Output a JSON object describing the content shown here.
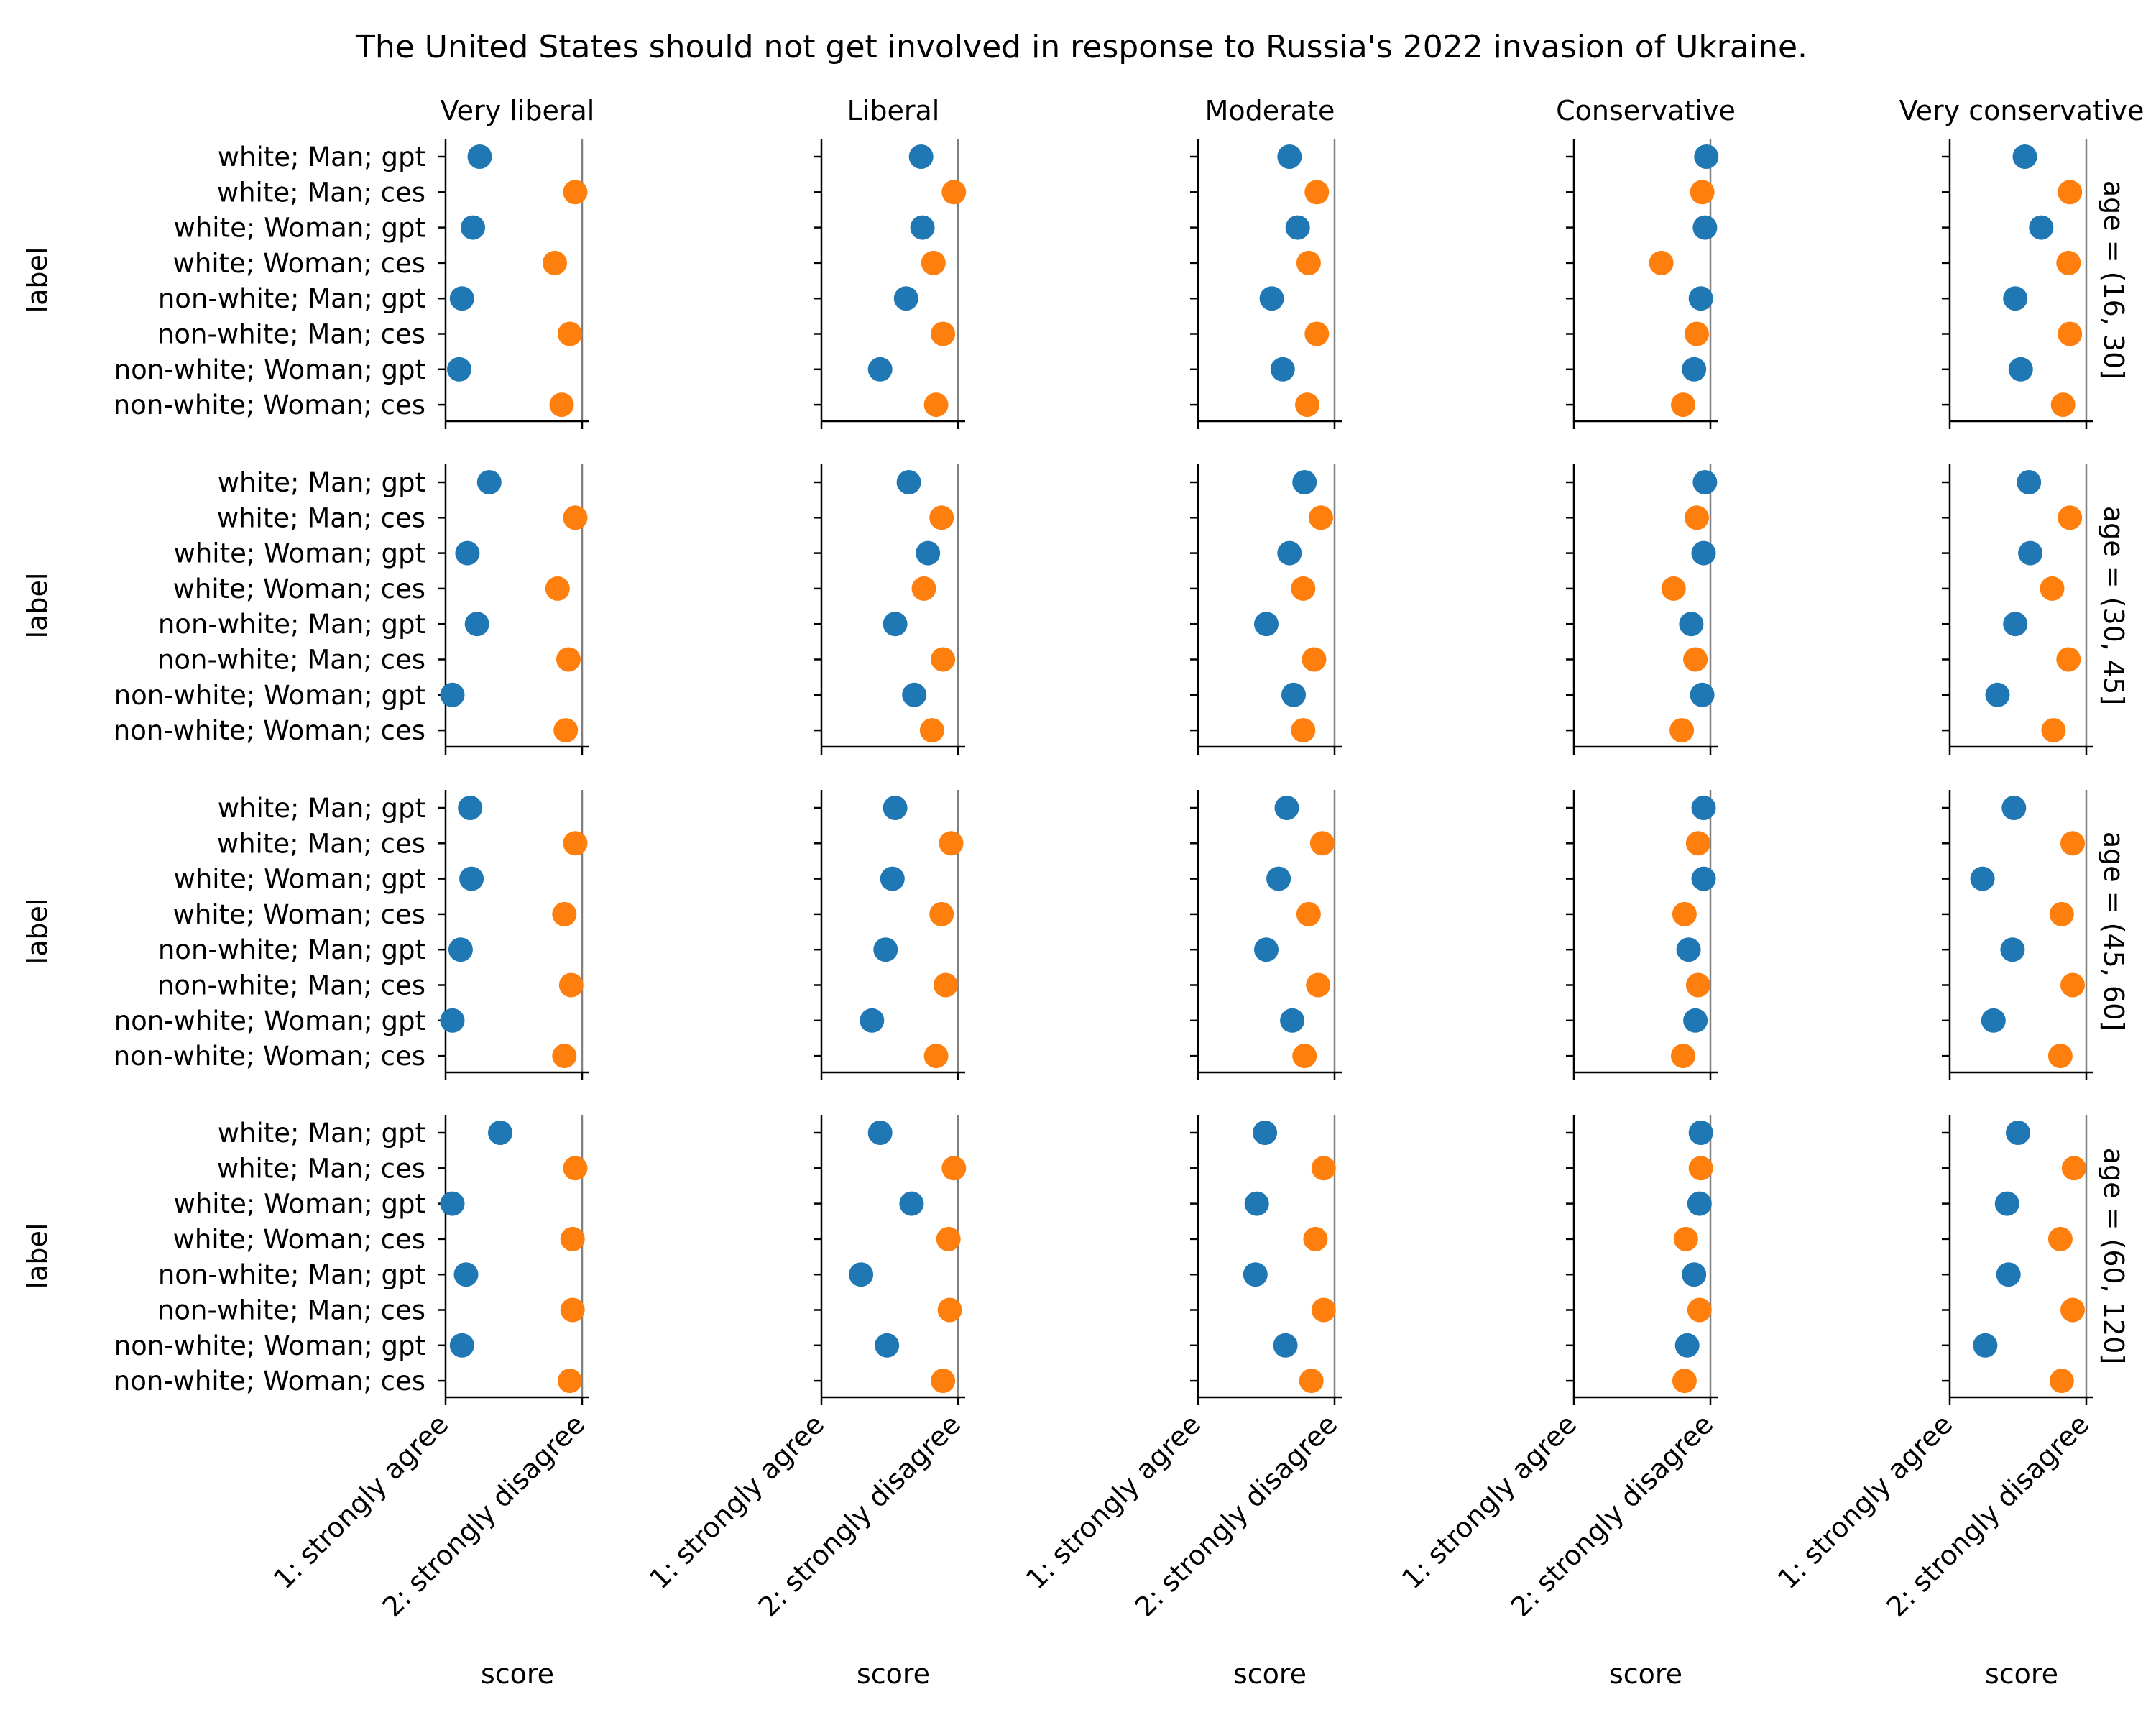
{
  "chart_data": {
    "type": "scatter",
    "title": "The United States should not get involved in response to Russia's 2022 invasion of Ukraine.",
    "xlabel": "score",
    "ylabel": "label",
    "xlim": [
      1,
      2
    ],
    "x_ticks": [
      {
        "value": 1,
        "label": "1: strongly agree"
      },
      {
        "value": 2,
        "label": "2: strongly disagree"
      }
    ],
    "columns": [
      "Very liberal",
      "Liberal",
      "Moderate",
      "Conservative",
      "Very conservative"
    ],
    "rows": [
      "age = (16, 30]",
      "age = (30, 45]",
      "age = (45, 60]",
      "age = (60, 120]"
    ],
    "categories": [
      "white; Man; gpt",
      "white; Man; ces",
      "white; Woman; gpt",
      "white; Woman; ces",
      "non-white; Man; gpt",
      "non-white; Man; ces",
      "non-white; Woman; gpt",
      "non-white; Woman; ces"
    ],
    "source_colors": {
      "gpt": "#1f77b4",
      "ces": "#ff7f0e"
    },
    "reference_line_x": 2,
    "grid": false,
    "panels": [
      [
        {
          "values": [
            1.25,
            1.95,
            1.2,
            1.8,
            1.12,
            1.91,
            1.1,
            1.85
          ],
          "errors": [
            0.05,
            0.02,
            0.05,
            0.04,
            0.03,
            0.02,
            0.03,
            0.02
          ]
        },
        {
          "values": [
            1.73,
            1.97,
            1.74,
            1.82,
            1.62,
            1.89,
            1.43,
            1.84
          ],
          "errors": [
            0.04,
            0.01,
            0.04,
            0.02,
            0.05,
            0.02,
            0.05,
            0.02
          ]
        },
        {
          "values": [
            1.67,
            1.87,
            1.73,
            1.81,
            1.54,
            1.87,
            1.62,
            1.8
          ],
          "errors": [
            0.05,
            0.02,
            0.05,
            0.02,
            0.05,
            0.02,
            0.05,
            0.02
          ]
        },
        {
          "values": [
            1.97,
            1.94,
            1.96,
            1.64,
            1.93,
            1.9,
            1.88,
            1.8
          ],
          "errors": [
            0.01,
            0.02,
            0.01,
            0.08,
            0.01,
            0.01,
            0.01,
            0.02
          ]
        },
        {
          "values": [
            1.55,
            1.88,
            1.67,
            1.87,
            1.48,
            1.88,
            1.52,
            1.83
          ],
          "errors": [
            0.06,
            0.07,
            0.05,
            0.07,
            0.05,
            0.02,
            0.05,
            0.02
          ]
        }
      ],
      [
        {
          "values": [
            1.32,
            1.95,
            1.16,
            1.82,
            1.23,
            1.9,
            1.05,
            1.88
          ],
          "errors": [
            0.05,
            0.02,
            0.03,
            0.03,
            0.04,
            0.02,
            0.03,
            0.02
          ]
        },
        {
          "values": [
            1.64,
            1.88,
            1.78,
            1.75,
            1.54,
            1.89,
            1.68,
            1.81
          ],
          "errors": [
            0.05,
            0.02,
            0.04,
            0.02,
            0.05,
            0.02,
            0.05,
            0.02
          ]
        },
        {
          "values": [
            1.78,
            1.9,
            1.67,
            1.77,
            1.5,
            1.85,
            1.7,
            1.77
          ],
          "errors": [
            0.04,
            0.02,
            0.05,
            0.02,
            0.05,
            0.02,
            0.05,
            0.02
          ]
        },
        {
          "values": [
            1.96,
            1.9,
            1.95,
            1.73,
            1.86,
            1.89,
            1.94,
            1.79
          ],
          "errors": [
            0.01,
            0.01,
            0.01,
            0.02,
            0.01,
            0.01,
            0.01,
            0.02
          ]
        },
        {
          "values": [
            1.58,
            1.88,
            1.59,
            1.75,
            1.48,
            1.87,
            1.35,
            1.76
          ],
          "errors": [
            0.05,
            0.02,
            0.05,
            0.05,
            0.05,
            0.02,
            0.05,
            0.02
          ]
        }
      ],
      [
        {
          "values": [
            1.18,
            1.95,
            1.19,
            1.87,
            1.11,
            1.92,
            1.05,
            1.87
          ],
          "errors": [
            0.04,
            0.02,
            0.04,
            0.02,
            0.03,
            0.02,
            0.03,
            0.02
          ]
        },
        {
          "values": [
            1.54,
            1.95,
            1.52,
            1.88,
            1.47,
            1.91,
            1.37,
            1.84
          ],
          "errors": [
            0.05,
            0.02,
            0.05,
            0.02,
            0.05,
            0.02,
            0.05,
            0.02
          ]
        },
        {
          "values": [
            1.65,
            1.91,
            1.59,
            1.81,
            1.5,
            1.88,
            1.69,
            1.78
          ],
          "errors": [
            0.05,
            0.02,
            0.05,
            0.02,
            0.05,
            0.02,
            0.05,
            0.02
          ]
        },
        {
          "values": [
            1.95,
            1.91,
            1.95,
            1.81,
            1.84,
            1.91,
            1.89,
            1.8
          ],
          "errors": [
            0.01,
            0.01,
            0.01,
            0.02,
            0.02,
            0.01,
            0.01,
            0.02
          ]
        },
        {
          "values": [
            1.47,
            1.9,
            1.24,
            1.82,
            1.46,
            1.9,
            1.32,
            1.81
          ],
          "errors": [
            0.05,
            0.02,
            0.05,
            0.02,
            0.05,
            0.02,
            0.05,
            0.02
          ]
        }
      ],
      [
        {
          "values": [
            1.4,
            1.95,
            1.05,
            1.93,
            1.15,
            1.93,
            1.12,
            1.91
          ],
          "errors": [
            0.05,
            0.02,
            0.03,
            0.02,
            0.04,
            0.02,
            0.03,
            0.02
          ]
        },
        {
          "values": [
            1.43,
            1.97,
            1.66,
            1.93,
            1.29,
            1.94,
            1.48,
            1.89
          ],
          "errors": [
            0.05,
            0.01,
            0.05,
            0.02,
            0.05,
            0.02,
            0.05,
            0.02
          ]
        },
        {
          "values": [
            1.49,
            1.92,
            1.43,
            1.86,
            1.42,
            1.92,
            1.64,
            1.83
          ],
          "errors": [
            0.05,
            0.02,
            0.05,
            0.02,
            0.05,
            0.02,
            0.05,
            0.02
          ]
        },
        {
          "values": [
            1.93,
            1.93,
            1.92,
            1.82,
            1.88,
            1.92,
            1.83,
            1.81
          ],
          "errors": [
            0.01,
            0.01,
            0.01,
            0.02,
            0.01,
            0.01,
            0.02,
            0.02
          ]
        },
        {
          "values": [
            1.5,
            1.91,
            1.42,
            1.81,
            1.43,
            1.9,
            1.26,
            1.82
          ],
          "errors": [
            0.05,
            0.02,
            0.05,
            0.02,
            0.05,
            0.02,
            0.05,
            0.02
          ]
        }
      ]
    ]
  }
}
